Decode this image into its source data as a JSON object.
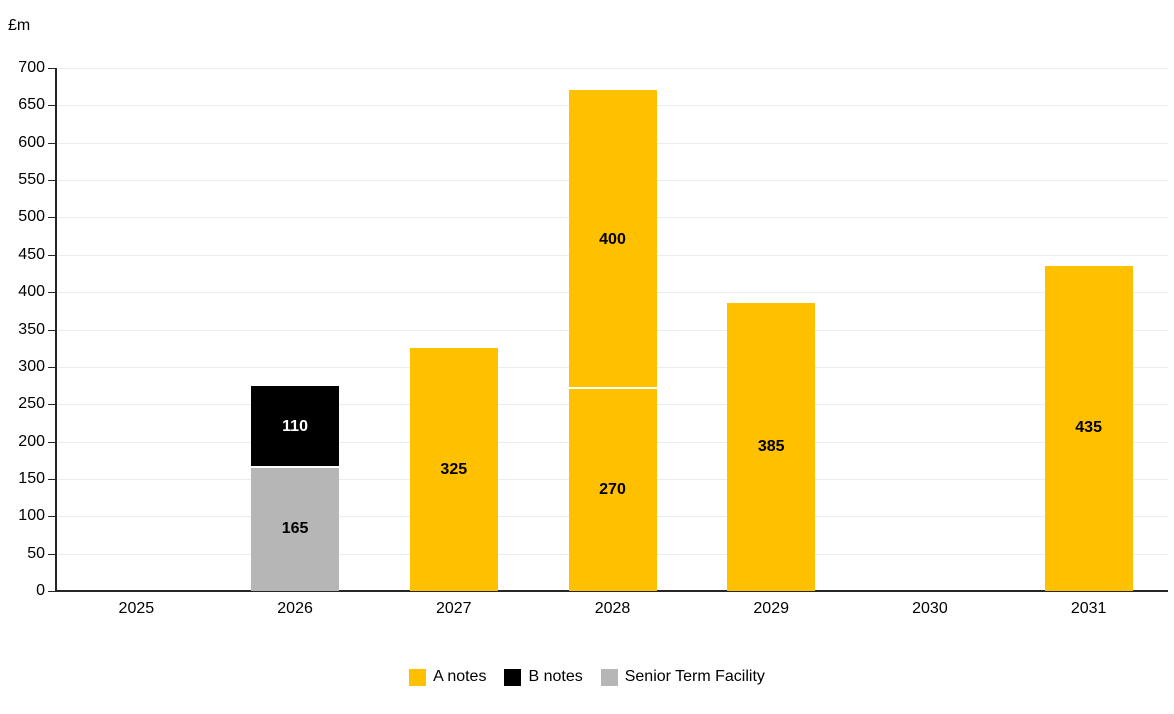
{
  "chart_data": {
    "type": "bar",
    "stacked": true,
    "title": "",
    "xlabel": "",
    "ylabel": "£m",
    "ylim": [
      0,
      700
    ],
    "ytick_step": 50,
    "grid": "horizontal",
    "legend_position": "bottom",
    "categories": [
      "2025",
      "2026",
      "2027",
      "2028",
      "2029",
      "2030",
      "2031"
    ],
    "series": [
      {
        "name": "A notes",
        "values": [
          0,
          0,
          325,
          670,
          385,
          0,
          435
        ]
      },
      {
        "name": "B notes",
        "values": [
          0,
          110,
          0,
          0,
          0,
          0,
          0
        ]
      },
      {
        "name": "Senior Term Facility",
        "values": [
          0,
          165,
          0,
          0,
          0,
          0,
          0
        ]
      }
    ],
    "bars": [
      {
        "category": "2025",
        "segments": []
      },
      {
        "category": "2026",
        "segments": [
          {
            "series": "Senior Term Facility",
            "value": 165,
            "label": "165"
          },
          {
            "series": "B notes",
            "value": 110,
            "label": "110"
          }
        ]
      },
      {
        "category": "2027",
        "segments": [
          {
            "series": "A notes",
            "value": 325,
            "label": "325"
          }
        ]
      },
      {
        "category": "2028",
        "segments": [
          {
            "series": "A notes",
            "value": 270,
            "label": "270"
          },
          {
            "series": "A notes",
            "value": 400,
            "label": "400"
          }
        ]
      },
      {
        "category": "2029",
        "segments": [
          {
            "series": "A notes",
            "value": 385,
            "label": "385"
          }
        ]
      },
      {
        "category": "2030",
        "segments": []
      },
      {
        "category": "2031",
        "segments": [
          {
            "series": "A notes",
            "value": 435,
            "label": "435"
          }
        ]
      }
    ],
    "colors": {
      "A notes": "#FFC000",
      "B notes": "#000000",
      "Senior Term Facility": "#B6B6B6"
    },
    "legend": [
      {
        "label": "A notes",
        "color": "#FFC000"
      },
      {
        "label": "B notes",
        "color": "#000000"
      },
      {
        "label": "Senior Term Facility",
        "color": "#B6B6B6"
      }
    ]
  }
}
